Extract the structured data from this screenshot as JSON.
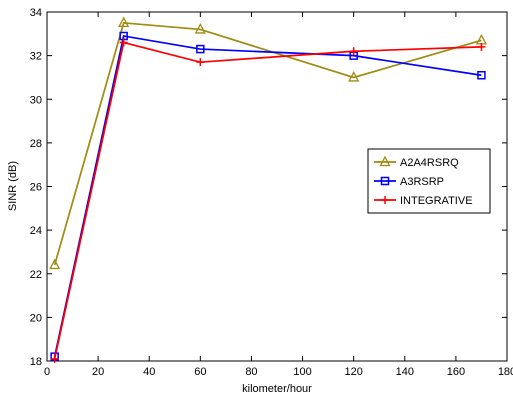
{
  "chart_data": {
    "type": "line",
    "xlabel": "kilometer/hour",
    "ylabel": "SINR (dB)",
    "xlim": [
      0,
      180
    ],
    "ylim": [
      18,
      34
    ],
    "xticks": [
      0,
      20,
      40,
      60,
      80,
      100,
      120,
      140,
      160,
      180
    ],
    "yticks": [
      18,
      20,
      22,
      24,
      26,
      28,
      30,
      32,
      34
    ],
    "grid": false,
    "legend_position": "right",
    "series": [
      {
        "name": "A2A4RSRQ",
        "color": "#a08a10",
        "marker": "triangle",
        "x": [
          3,
          30,
          60,
          120,
          170
        ],
        "y": [
          22.4,
          33.5,
          33.2,
          31.0,
          32.7
        ]
      },
      {
        "name": "A3RSRP",
        "color": "#0000ff",
        "marker": "square",
        "x": [
          3,
          30,
          60,
          120,
          170
        ],
        "y": [
          18.2,
          32.9,
          32.3,
          32.0,
          31.1
        ]
      },
      {
        "name": "INTEGRATIVE",
        "color": "#ff0000",
        "marker": "plus",
        "x": [
          3,
          30,
          60,
          120,
          170
        ],
        "y": [
          18.1,
          32.6,
          31.7,
          32.2,
          32.4
        ]
      }
    ]
  }
}
